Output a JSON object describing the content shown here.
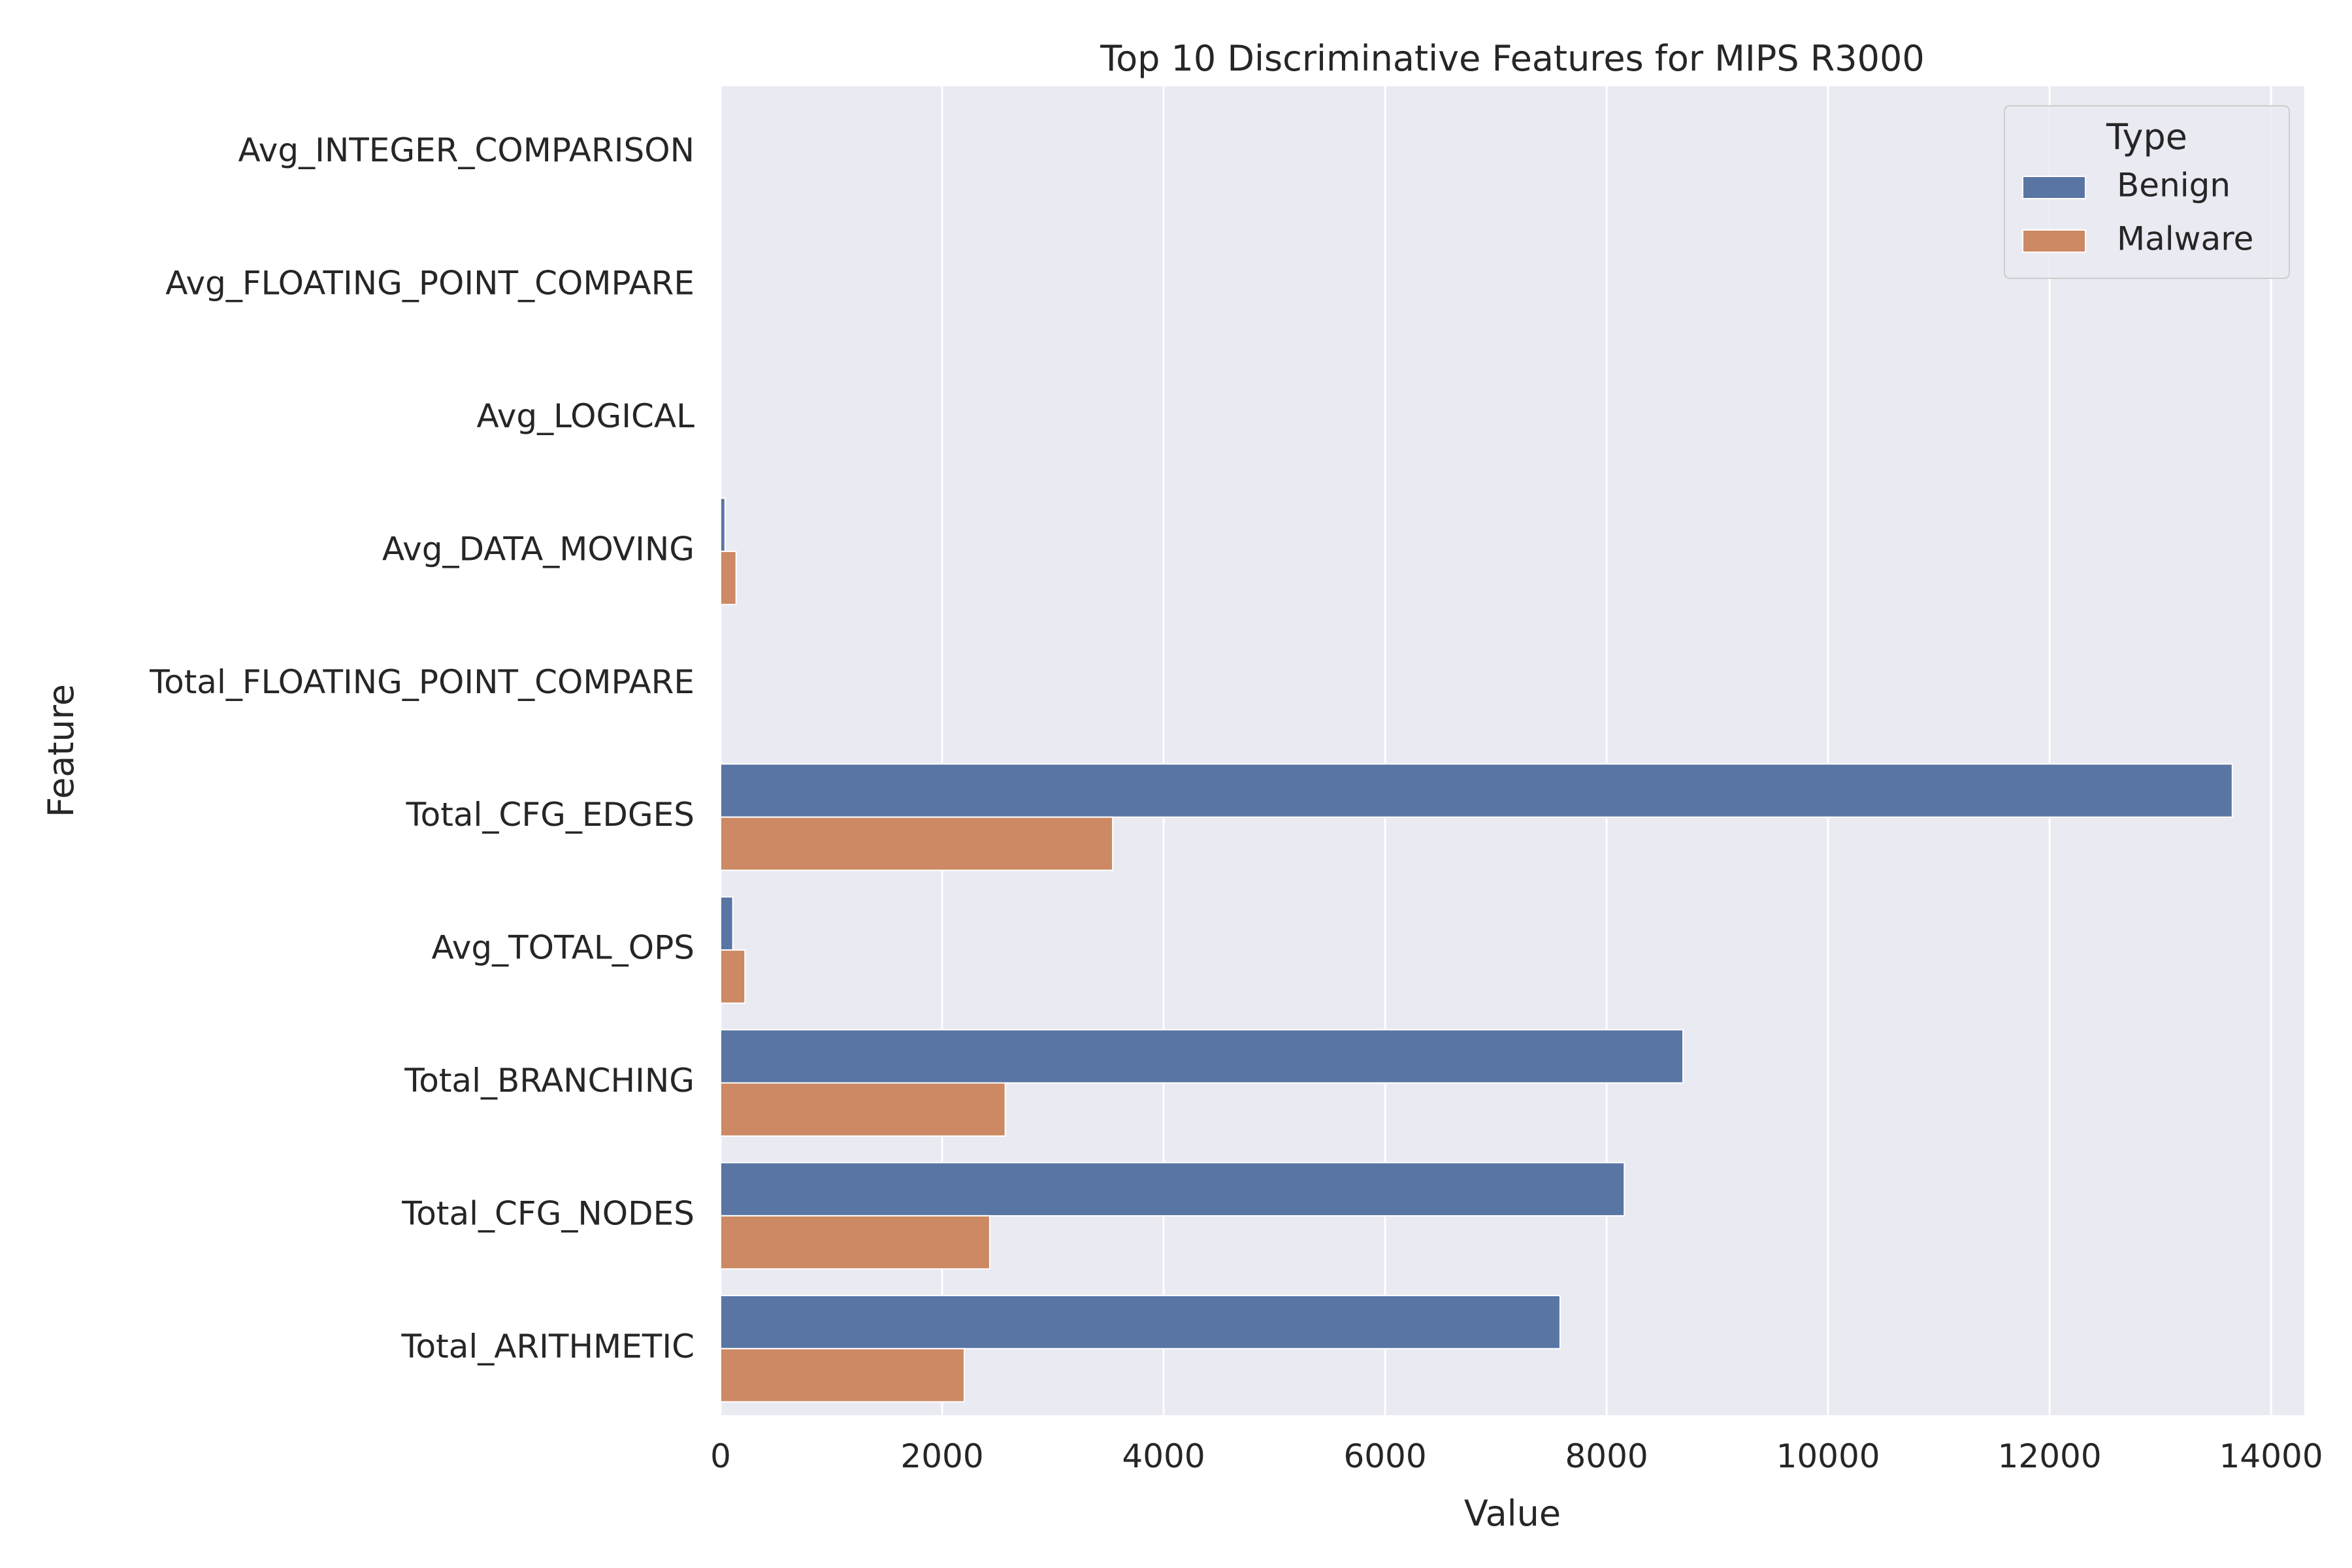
{
  "chart_data": {
    "type": "bar",
    "orientation": "horizontal",
    "title": "Top 10 Discriminative Features for MIPS R3000",
    "xlabel": "Value",
    "ylabel": "Feature",
    "xlim": [
      0,
      14300
    ],
    "xticks": [
      0,
      2000,
      4000,
      6000,
      8000,
      10000,
      12000,
      14000
    ],
    "xtick_labels": [
      "0",
      "2000",
      "4000",
      "6000",
      "8000",
      "10000",
      "12000",
      "14000"
    ],
    "grid": true,
    "legend": {
      "title": "Type",
      "placement": "top-right"
    },
    "categories": [
      "Avg_INTEGER_COMPARISON",
      "Avg_FLOATING_POINT_COMPARE",
      "Avg_LOGICAL",
      "Avg_DATA_MOVING",
      "Total_FLOATING_POINT_COMPARE",
      "Total_CFG_EDGES",
      "Avg_TOTAL_OPS",
      "Total_BRANCHING",
      "Total_CFG_NODES",
      "Total_ARITHMETIC"
    ],
    "series": [
      {
        "name": "Benign",
        "color": "#5975a4",
        "values": [
          0.5,
          0.3,
          0.5,
          40,
          0.5,
          13650,
          110,
          8690,
          8160,
          7580
        ]
      },
      {
        "name": "Malware",
        "color": "#cc8963",
        "values": [
          1,
          0.3,
          1,
          140,
          1,
          3540,
          220,
          2570,
          2430,
          2200
        ]
      }
    ]
  }
}
